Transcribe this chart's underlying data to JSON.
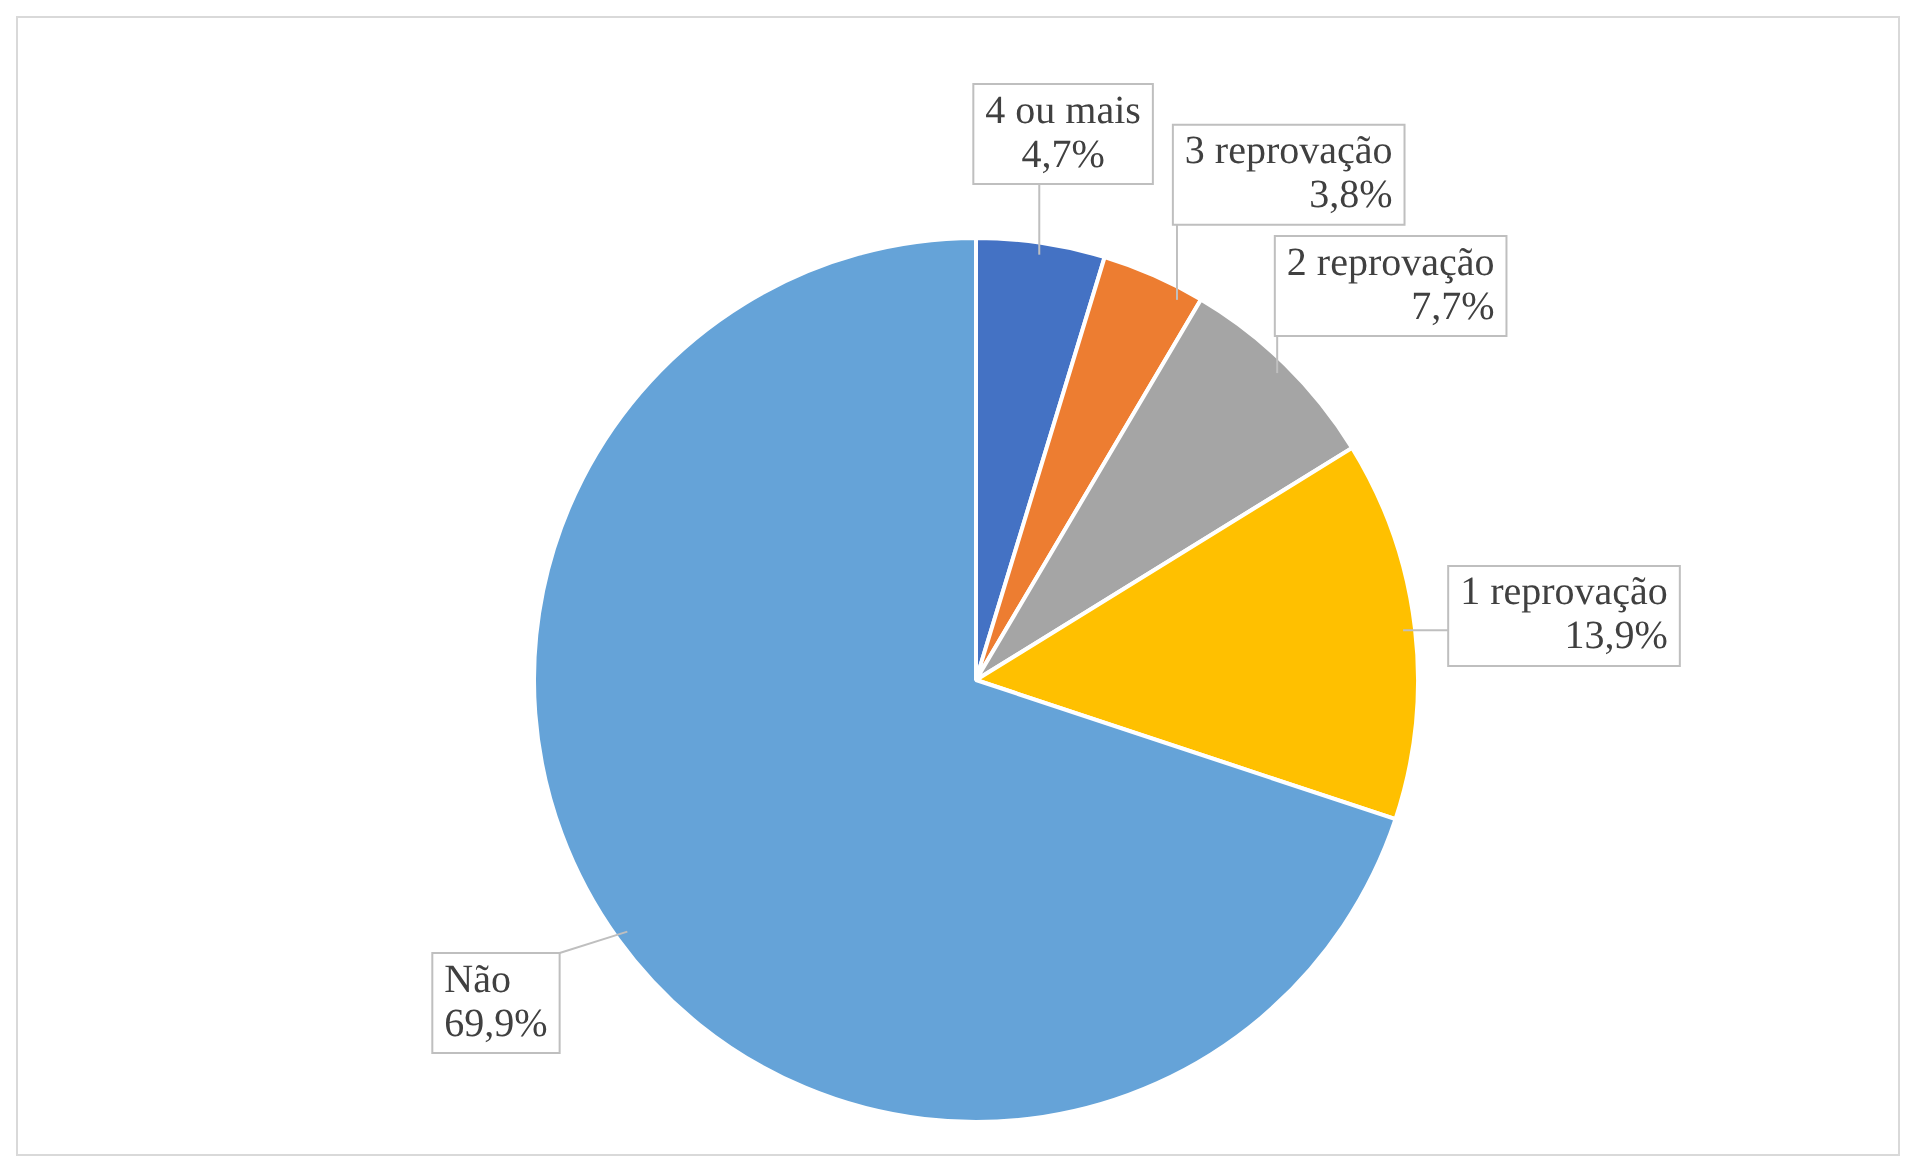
{
  "chart_data": {
    "type": "pie",
    "categories": [
      "4 ou mais",
      "3 reprovação",
      "2 reprovação",
      "1 reprovação",
      "Não"
    ],
    "values": [
      4.7,
      3.8,
      7.7,
      13.9,
      69.9
    ],
    "colors": [
      "#4472c4",
      "#ed7d31",
      "#a5a5a5",
      "#ffc000",
      "#65a3d8"
    ],
    "value_labels": [
      "4,7%",
      "3,8%",
      "7,7%",
      "13,9%",
      "69,9%"
    ],
    "legend": false
  }
}
